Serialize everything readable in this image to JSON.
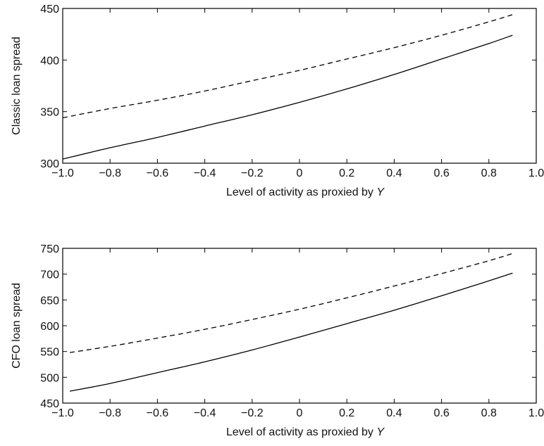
{
  "chart_data": [
    {
      "type": "line",
      "xlabel": "Level of activity as proxied by",
      "xlabel_var": "Y",
      "ylabel": "Classic loan spread",
      "xlim": [
        -1.0,
        1.0
      ],
      "ylim": [
        300,
        450
      ],
      "xticks": [
        -1.0,
        -0.8,
        -0.6,
        -0.4,
        -0.2,
        0,
        0.2,
        0.4,
        0.6,
        0.8,
        1.0
      ],
      "xtick_labels": [
        "−1.0",
        "−0.8",
        "−0.6",
        "−0.4",
        "−0.2",
        "0",
        "0.2",
        "0.4",
        "0.6",
        "0.8",
        "1.0"
      ],
      "yticks": [
        300,
        350,
        400,
        450
      ],
      "ytick_labels": [
        "300",
        "350",
        "400",
        "450"
      ],
      "grid": false,
      "series": [
        {
          "style": "dashed",
          "x": [
            -1.0,
            -0.8,
            -0.6,
            -0.4,
            -0.2,
            0,
            0.2,
            0.4,
            0.6,
            0.8,
            0.9
          ],
          "y": [
            344,
            353,
            361,
            370,
            380,
            390,
            401,
            412,
            424,
            437,
            444
          ]
        },
        {
          "style": "solid",
          "x": [
            -1.0,
            -0.8,
            -0.6,
            -0.4,
            -0.2,
            0,
            0.2,
            0.4,
            0.6,
            0.8,
            0.9
          ],
          "y": [
            304,
            315,
            325,
            336,
            347,
            359,
            372,
            386,
            401,
            416,
            424
          ]
        }
      ]
    },
    {
      "type": "line",
      "xlabel": "Level of activity as proxied by",
      "xlabel_var": "Y",
      "ylabel": "CFO loan spread",
      "xlim": [
        -1.0,
        1.0
      ],
      "ylim": [
        450,
        750
      ],
      "xticks": [
        -1.0,
        -0.8,
        -0.6,
        -0.4,
        -0.2,
        0,
        0.2,
        0.4,
        0.6,
        0.8,
        1.0
      ],
      "xtick_labels": [
        "−1.0",
        "−0.8",
        "−0.6",
        "−0.4",
        "−0.2",
        "0",
        "0.2",
        "0.4",
        "0.6",
        "0.8",
        "1.0"
      ],
      "yticks": [
        450,
        500,
        550,
        600,
        650,
        700,
        750
      ],
      "ytick_labels": [
        "450",
        "500",
        "550",
        "600",
        "650",
        "700",
        "750"
      ],
      "grid": false,
      "series": [
        {
          "style": "dashed",
          "x": [
            -0.97,
            -0.8,
            -0.6,
            -0.4,
            -0.2,
            0,
            0.2,
            0.4,
            0.6,
            0.8,
            0.9
          ],
          "y": [
            548,
            560,
            576,
            593,
            612,
            632,
            654,
            677,
            701,
            726,
            740
          ]
        },
        {
          "style": "solid",
          "x": [
            -0.97,
            -0.8,
            -0.6,
            -0.4,
            -0.2,
            0,
            0.2,
            0.4,
            0.6,
            0.8,
            0.9
          ],
          "y": [
            473,
            488,
            509,
            530,
            553,
            578,
            604,
            630,
            658,
            687,
            702
          ]
        }
      ]
    }
  ]
}
